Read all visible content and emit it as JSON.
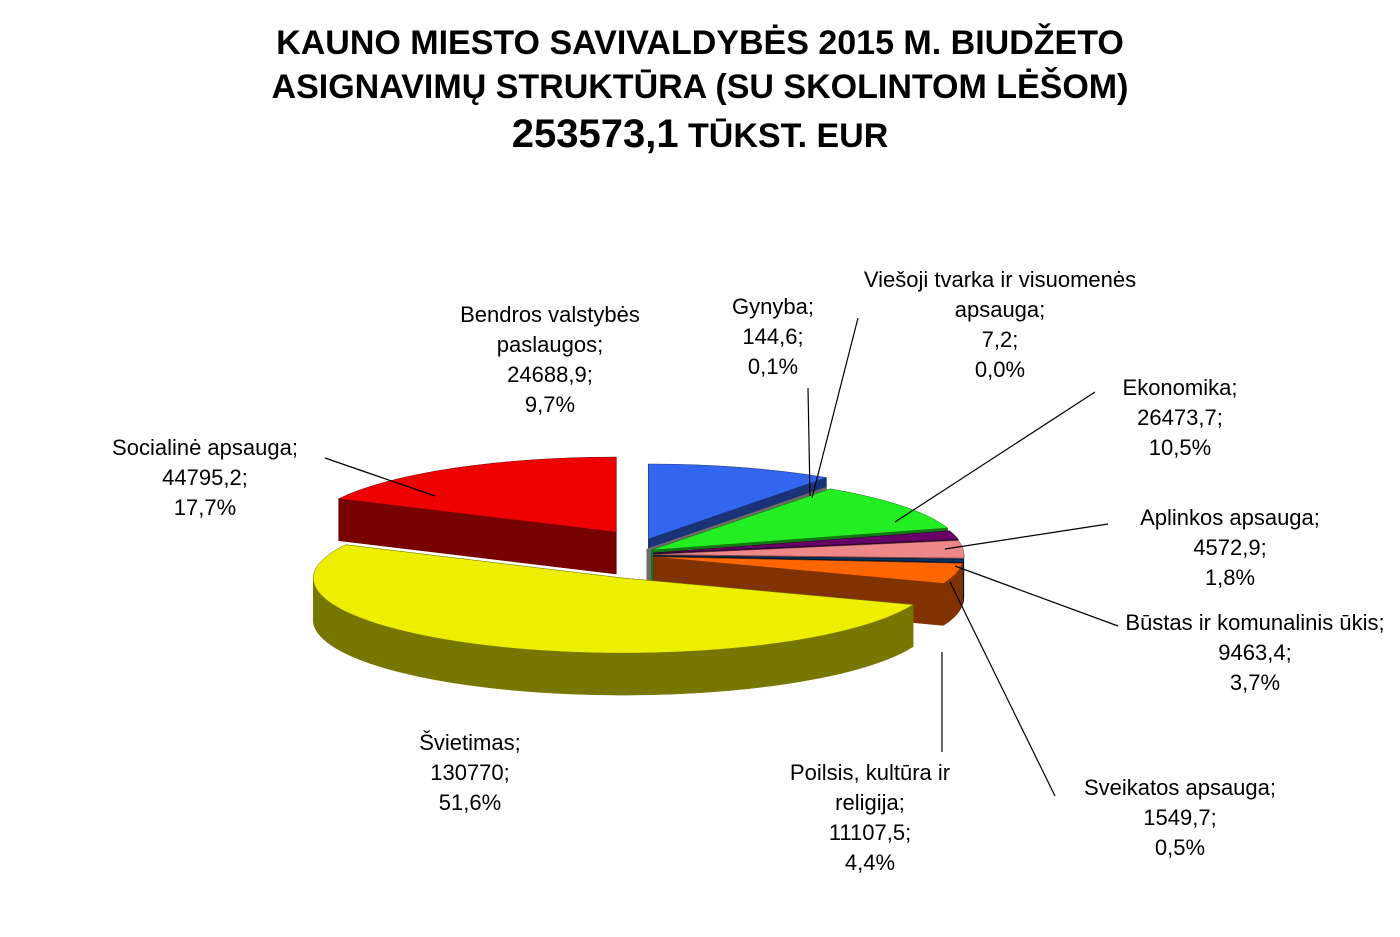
{
  "chart_data": {
    "type": "pie3d",
    "title_lines": [
      "KAUNO MIESTO SAVIVALDYBĖS 2015 M.  BIUDŽETO",
      "ASIGNAVIMŲ STRUKTŪRA (SU SKOLINTOM LĖŠOM)"
    ],
    "total_label": "253573,1",
    "total_unit": "TŪKST. EUR",
    "categories": [
      "Bendros valstybės paslaugos;",
      "Gynyba;",
      "Viešoji tvarka ir visuomenės apsauga;",
      "Ekonomika;",
      "Aplinkos apsauga;",
      "Būstas ir komunalinis ūkis;",
      "Sveikatos apsauga;",
      "Poilsis, kultūra ir religija;",
      "Švietimas;",
      "Socialinė apsauga;"
    ],
    "values": [
      24688.9,
      144.6,
      7.2,
      26473.7,
      4572.9,
      9463.4,
      1549.7,
      11107.5,
      130770,
      44795.2
    ],
    "value_labels": [
      "24688,9;",
      "144,6;",
      "7,2;",
      "26473,7;",
      "4572,9;",
      "9463,4;",
      "1549,7;",
      "11107,5;",
      "130770;",
      "44795,2;"
    ],
    "percents": [
      9.7,
      0.1,
      0.0,
      10.5,
      1.8,
      3.7,
      0.5,
      4.4,
      51.6,
      17.7
    ],
    "percent_labels": [
      "9,7%",
      "0,1%",
      "0,0%",
      "10,5%",
      "1,8%",
      "3,7%",
      "0,5%",
      "4,4%",
      "51,6%",
      "17,7%"
    ],
    "colors": [
      "#3366ee",
      "#a8a898",
      "#d8d8d0",
      "#22ee22",
      "#660066",
      "#ee8888",
      "#003366",
      "#ff6600",
      "#eeee00",
      "#ee0000"
    ]
  }
}
